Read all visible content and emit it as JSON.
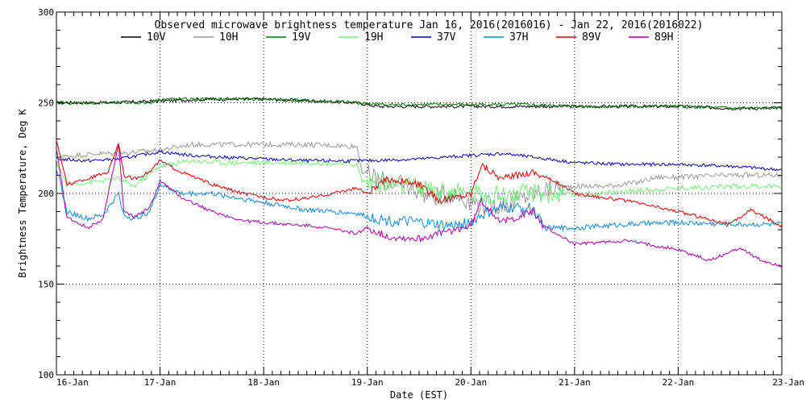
{
  "chart_data": {
    "type": "line",
    "title": "Observed microwave brightness temperature Jan 16, 2016(2016016) - Jan 22, 2016(2016022)",
    "xlabel": "Date (EST)",
    "ylabel": "Brightness Temperature, Deg K",
    "ylim": [
      100,
      300
    ],
    "xlim": [
      0,
      7
    ],
    "yticks": [
      100,
      150,
      200,
      250,
      300
    ],
    "y_gridlines": [
      150,
      200,
      250
    ],
    "xtick_labels": [
      "16-Jan",
      "17-Jan",
      "18-Jan",
      "19-Jan",
      "20-Jan",
      "21-Jan",
      "22-Jan",
      "23-Jan"
    ],
    "x_unit": "days since 16-Jan 00:00",
    "series": [
      {
        "name": "10V",
        "color": "#000000",
        "x": [
          0,
          0.5,
          1,
          1.5,
          2,
          2.5,
          2.9,
          3.1,
          3.5,
          4,
          4.5,
          5,
          5.5,
          6,
          6.5,
          7
        ],
        "y": [
          250,
          250,
          251,
          252,
          252,
          251,
          250,
          248,
          248,
          248,
          248,
          248,
          248,
          248,
          247,
          247
        ]
      },
      {
        "name": "10H",
        "color": "#999999",
        "x": [
          0,
          0.2,
          0.4,
          0.6,
          0.8,
          1,
          1.3,
          1.6,
          2,
          2.4,
          2.9,
          2.95,
          3.1,
          3.3,
          3.5,
          3.6,
          3.8,
          4,
          4.2,
          4.4,
          4.6,
          4.8,
          5,
          5.3,
          5.6,
          5.8,
          6,
          6.5,
          7
        ],
        "y": [
          220,
          221,
          222,
          222,
          223,
          224,
          227,
          227,
          227,
          227,
          226,
          212,
          208,
          205,
          202,
          198,
          200,
          196,
          193,
          195,
          200,
          203,
          204,
          204,
          206,
          209,
          209,
          210,
          210
        ]
      },
      {
        "name": "19V",
        "color": "#007700",
        "x": [
          0,
          0.5,
          0.9,
          1,
          1.5,
          2,
          2.5,
          2.9,
          3.1,
          3.5,
          4,
          4.5,
          5,
          5.5,
          6,
          6.5,
          7
        ],
        "y": [
          250,
          250,
          250,
          252,
          252,
          252,
          251,
          250,
          249,
          249,
          249,
          249,
          248,
          248,
          248,
          247,
          247
        ]
      },
      {
        "name": "19H",
        "color": "#77ee77",
        "x": [
          0,
          0.1,
          0.3,
          0.6,
          0.75,
          0.9,
          1,
          1.3,
          1.6,
          2,
          2.5,
          2.9,
          2.95,
          3.2,
          3.5,
          3.7,
          4,
          4.3,
          4.6,
          5,
          5.5,
          6,
          6.5,
          7
        ],
        "y": [
          218,
          205,
          206,
          208,
          204,
          211,
          215,
          218,
          217,
          217,
          217,
          216,
          207,
          205,
          203,
          201,
          200,
          199,
          200,
          199,
          201,
          203,
          204,
          204
        ]
      },
      {
        "name": "37V",
        "color": "#0000bb",
        "x": [
          0,
          0.3,
          0.6,
          1,
          1.3,
          1.6,
          2,
          2.4,
          2.9,
          3.0,
          3.5,
          4,
          4.3,
          4.6,
          5,
          5.5,
          6,
          6.5,
          7
        ],
        "y": [
          219,
          218,
          219,
          223,
          221,
          220,
          219,
          218,
          218,
          218,
          219,
          221,
          222,
          220,
          217,
          216,
          216,
          215,
          213
        ]
      },
      {
        "name": "37H",
        "color": "#1188dd",
        "x": [
          0,
          0.1,
          0.3,
          0.45,
          0.6,
          0.65,
          0.75,
          0.9,
          1.0,
          1.2,
          1.5,
          2,
          2.4,
          2.9,
          2.95,
          3.2,
          3.5,
          3.8,
          4,
          4.1,
          4.3,
          4.6,
          4.7,
          5,
          5.5,
          6,
          6.5,
          7
        ],
        "y": [
          215,
          190,
          186,
          188,
          200,
          188,
          186,
          190,
          205,
          200,
          200,
          195,
          191,
          189,
          188,
          185,
          184,
          182,
          184,
          188,
          192,
          192,
          181,
          181,
          183,
          184,
          183,
          183
        ]
      },
      {
        "name": "89V",
        "color": "#dd0000",
        "x": [
          0,
          0.1,
          0.3,
          0.5,
          0.6,
          0.65,
          0.75,
          0.9,
          1.0,
          1.2,
          1.5,
          1.8,
          2.2,
          2.5,
          2.9,
          3.0,
          3.2,
          3.5,
          3.7,
          4,
          4.1,
          4.3,
          4.6,
          4.8,
          5,
          5.5,
          6,
          6.5,
          6.7,
          6.9,
          7
        ],
        "y": [
          230,
          205,
          208,
          212,
          228,
          210,
          208,
          212,
          218,
          212,
          205,
          200,
          196,
          198,
          203,
          200,
          208,
          205,
          196,
          200,
          216,
          208,
          212,
          207,
          200,
          196,
          190,
          183,
          191,
          185,
          182
        ]
      },
      {
        "name": "89H",
        "color": "#aa00aa",
        "x": [
          0,
          0.1,
          0.3,
          0.45,
          0.6,
          0.65,
          0.75,
          0.9,
          1.0,
          1.2,
          1.5,
          1.8,
          2.2,
          2.5,
          2.9,
          3.0,
          3.2,
          3.5,
          3.7,
          4,
          4.1,
          4.3,
          4.6,
          4.7,
          5,
          5.5,
          6,
          6.3,
          6.6,
          6.8,
          7
        ],
        "y": [
          225,
          187,
          181,
          186,
          227,
          190,
          187,
          192,
          207,
          198,
          190,
          185,
          183,
          182,
          178,
          181,
          176,
          175,
          178,
          182,
          196,
          184,
          190,
          182,
          172,
          174,
          169,
          163,
          170,
          163,
          160
        ]
      }
    ]
  }
}
